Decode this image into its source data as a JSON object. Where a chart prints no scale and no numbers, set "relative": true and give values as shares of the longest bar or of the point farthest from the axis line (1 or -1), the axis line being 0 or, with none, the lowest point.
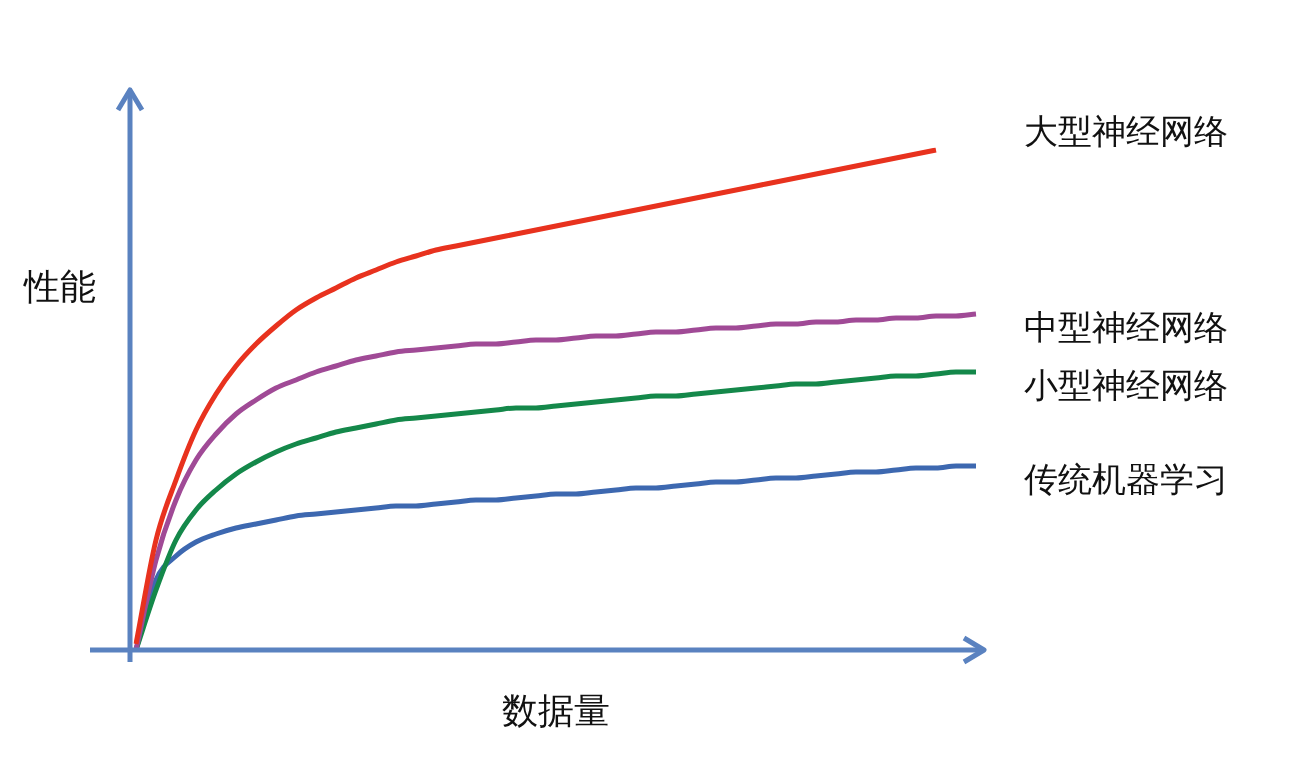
{
  "chart_data": {
    "type": "line",
    "relative": true,
    "marker": "none",
    "xlabel": "数据量",
    "ylabel": "性能",
    "categories": [
      null,
      null,
      null,
      null,
      null,
      null,
      null,
      null,
      null,
      null,
      null,
      null,
      null,
      null,
      null,
      null,
      null,
      null,
      null,
      null,
      null,
      null,
      null,
      null,
      null,
      null,
      null,
      null,
      null,
      null,
      null,
      null,
      null,
      null,
      null,
      null,
      null,
      null,
      null,
      null,
      null,
      null,
      null
    ],
    "series": [
      {
        "name": "大型神经网络",
        "color": "#e8321e",
        "values": [
          0.012,
          0.22,
          0.34,
          0.44,
          0.512,
          0.568,
          0.612,
          0.648,
          0.68,
          0.704,
          0.724,
          0.744,
          0.76,
          0.776,
          0.788,
          0.8,
          0.808,
          0.816,
          0.824,
          0.832,
          0.84,
          0.848,
          0.856,
          0.864,
          0.872,
          0.88,
          0.888,
          0.896,
          0.904,
          0.912,
          0.92,
          0.928,
          0.936,
          0.944,
          0.952,
          0.96,
          0.968,
          0.976,
          0.984,
          0.992,
          1,
          null,
          null
        ]
      },
      {
        "name": "中型神经网络",
        "color": "#a04a96",
        "values": [
          0,
          0.18,
          0.3,
          0.38,
          0.432,
          0.472,
          0.5,
          0.524,
          0.54,
          0.556,
          0.568,
          0.58,
          0.588,
          0.596,
          0.6,
          0.604,
          0.608,
          0.612,
          0.612,
          0.616,
          0.62,
          0.62,
          0.624,
          0.628,
          0.628,
          0.632,
          0.636,
          0.636,
          0.64,
          0.644,
          0.644,
          0.648,
          0.652,
          0.652,
          0.656,
          0.656,
          0.66,
          0.66,
          0.664,
          0.664,
          0.668,
          0.668,
          0.672
        ]
      },
      {
        "name": "小型神经网络",
        "color": "#14884a",
        "values": [
          0,
          0.12,
          0.22,
          0.28,
          0.32,
          0.352,
          0.376,
          0.396,
          0.412,
          0.424,
          0.436,
          0.444,
          0.452,
          0.46,
          0.464,
          0.468,
          0.472,
          0.476,
          0.48,
          0.484,
          0.484,
          0.488,
          0.492,
          0.496,
          0.5,
          0.504,
          0.508,
          0.508,
          0.512,
          0.516,
          0.52,
          0.524,
          0.528,
          0.532,
          0.532,
          0.536,
          0.54,
          0.544,
          0.548,
          0.548,
          0.552,
          0.556,
          0.556
        ]
      },
      {
        "name": "传统机器学习",
        "color": "#3d68b0",
        "values": [
          0,
          0.14,
          0.188,
          0.216,
          0.232,
          0.244,
          0.252,
          0.26,
          0.268,
          0.272,
          0.276,
          0.28,
          0.284,
          0.288,
          0.288,
          0.292,
          0.296,
          0.3,
          0.3,
          0.304,
          0.308,
          0.312,
          0.312,
          0.316,
          0.32,
          0.324,
          0.324,
          0.328,
          0.332,
          0.336,
          0.336,
          0.34,
          0.344,
          0.344,
          0.348,
          0.352,
          0.356,
          0.356,
          0.36,
          0.364,
          0.364,
          0.368,
          0.368
        ]
      }
    ]
  }
}
